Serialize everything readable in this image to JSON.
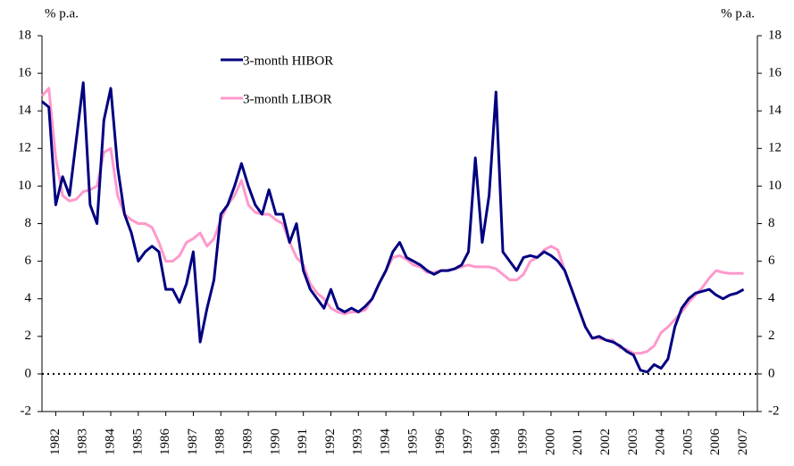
{
  "chart_data": {
    "type": "line",
    "ylabel": "% p.a.",
    "y2label": "% p.a.",
    "xlim": [
      1982,
      2008
    ],
    "xticks": [
      {
        "value": 1982.5,
        "label": "1982"
      },
      {
        "value": 1983.5,
        "label": "1983"
      },
      {
        "value": 1984.5,
        "label": "1984"
      },
      {
        "value": 1985.5,
        "label": "1985"
      },
      {
        "value": 1986.5,
        "label": "1986"
      },
      {
        "value": 1987.5,
        "label": "1987"
      },
      {
        "value": 1988.5,
        "label": "1988"
      },
      {
        "value": 1989.5,
        "label": "1989"
      },
      {
        "value": 1990.5,
        "label": "1990"
      },
      {
        "value": 1991.5,
        "label": "1991"
      },
      {
        "value": 1992.5,
        "label": "1992"
      },
      {
        "value": 1993.5,
        "label": "1993"
      },
      {
        "value": 1994.5,
        "label": "1994"
      },
      {
        "value": 1995.5,
        "label": "1995"
      },
      {
        "value": 1996.5,
        "label": "1996"
      },
      {
        "value": 1997.5,
        "label": "1997"
      },
      {
        "value": 1998.5,
        "label": "1998"
      },
      {
        "value": 1999.5,
        "label": "1999"
      },
      {
        "value": 2000.5,
        "label": "2000"
      },
      {
        "value": 2001.5,
        "label": "2001"
      },
      {
        "value": 2002.5,
        "label": "2002"
      },
      {
        "value": 2003.5,
        "label": "2003"
      },
      {
        "value": 2004.5,
        "label": "2004"
      },
      {
        "value": 2005.5,
        "label": "2005"
      },
      {
        "value": 2006.5,
        "label": "2006"
      },
      {
        "value": 2007.5,
        "label": "2007"
      }
    ],
    "ylim": [
      -2,
      18
    ],
    "yticks": [
      -2,
      0,
      2,
      4,
      6,
      8,
      10,
      12,
      14,
      16,
      18
    ],
    "y2lim": [
      -2,
      18
    ],
    "y2ticks": [
      -2,
      0,
      2,
      4,
      6,
      8,
      10,
      12,
      14,
      16,
      18
    ],
    "reference_line": 0,
    "legend": "upper left",
    "x": [
      1982,
      1982.25,
      1982.5,
      1982.75,
      1983,
      1983.25,
      1983.5,
      1983.75,
      1984,
      1984.25,
      1984.5,
      1984.75,
      1985,
      1985.25,
      1985.5,
      1985.75,
      1986,
      1986.25,
      1986.5,
      1986.75,
      1987,
      1987.25,
      1987.5,
      1987.75,
      1988,
      1988.25,
      1988.5,
      1988.75,
      1989,
      1989.25,
      1989.5,
      1989.75,
      1990,
      1990.25,
      1990.5,
      1990.75,
      1991,
      1991.25,
      1991.5,
      1991.75,
      1992,
      1992.25,
      1992.5,
      1992.75,
      1993,
      1993.25,
      1993.5,
      1993.75,
      1994,
      1994.25,
      1994.5,
      1994.75,
      1995,
      1995.25,
      1995.5,
      1995.75,
      1996,
      1996.25,
      1996.5,
      1996.75,
      1997,
      1997.25,
      1997.5,
      1997.75,
      1998,
      1998.25,
      1998.5,
      1998.75,
      1999,
      1999.25,
      1999.5,
      1999.75,
      2000,
      2000.25,
      2000.5,
      2000.75,
      2001,
      2001.25,
      2001.5,
      2001.75,
      2002,
      2002.25,
      2002.5,
      2002.75,
      2003,
      2003.25,
      2003.5,
      2003.75,
      2004,
      2004.25,
      2004.5,
      2004.75,
      2005,
      2005.25,
      2005.5,
      2005.75,
      2006,
      2006.25,
      2006.5,
      2006.75,
      2007,
      2007.25,
      2007.5
    ],
    "series": [
      {
        "name": "3-month HIBOR",
        "color": "#000080",
        "values": [
          14.5,
          14.2,
          9.0,
          10.5,
          9.5,
          12.5,
          15.5,
          9.0,
          8.0,
          13.5,
          15.2,
          11.0,
          8.5,
          7.5,
          6.0,
          6.5,
          6.8,
          6.5,
          4.5,
          4.5,
          3.8,
          4.8,
          6.5,
          1.7,
          3.5,
          5.0,
          8.5,
          9.0,
          10.0,
          11.2,
          10.0,
          9.0,
          8.5,
          9.8,
          8.5,
          8.5,
          7.0,
          8.0,
          5.5,
          4.5,
          4.0,
          3.5,
          4.5,
          3.5,
          3.3,
          3.5,
          3.3,
          3.6,
          4.0,
          4.8,
          5.5,
          6.5,
          7.0,
          6.2,
          6.0,
          5.8,
          5.5,
          5.3,
          5.5,
          5.5,
          5.6,
          5.8,
          6.5,
          11.5,
          7.0,
          9.5,
          15.0,
          6.5,
          6.0,
          5.5,
          6.2,
          6.3,
          6.2,
          6.5,
          6.3,
          6.0,
          5.5,
          4.5,
          3.5,
          2.5,
          1.9,
          2.0,
          1.8,
          1.7,
          1.5,
          1.2,
          1.0,
          0.2,
          0.1,
          0.5,
          0.3,
          0.8,
          2.5,
          3.5,
          4.0,
          4.3,
          4.4,
          4.5,
          4.2,
          4.0,
          4.2,
          4.3,
          4.5
        ]
      },
      {
        "name": "3-month LIBOR",
        "color": "#ff99cc",
        "values": [
          14.8,
          15.2,
          11.5,
          9.5,
          9.2,
          9.3,
          9.7,
          9.8,
          10.0,
          11.8,
          12.0,
          9.5,
          8.5,
          8.2,
          8.0,
          8.0,
          7.8,
          7.0,
          6.0,
          6.0,
          6.3,
          7.0,
          7.2,
          7.5,
          6.8,
          7.2,
          8.2,
          9.0,
          9.5,
          10.3,
          9.0,
          8.6,
          8.5,
          8.5,
          8.2,
          8.0,
          7.0,
          6.2,
          5.8,
          4.8,
          4.3,
          4.0,
          3.5,
          3.3,
          3.2,
          3.3,
          3.3,
          3.4,
          4.0,
          4.8,
          5.5,
          6.2,
          6.3,
          6.1,
          5.8,
          5.7,
          5.4,
          5.4,
          5.5,
          5.5,
          5.6,
          5.7,
          5.8,
          5.7,
          5.7,
          5.7,
          5.6,
          5.3,
          5.0,
          5.0,
          5.3,
          6.0,
          6.2,
          6.6,
          6.8,
          6.6,
          5.5,
          4.5,
          3.5,
          2.5,
          1.9,
          1.9,
          1.8,
          1.8,
          1.4,
          1.3,
          1.1,
          1.1,
          1.2,
          1.5,
          2.2,
          2.5,
          2.9,
          3.3,
          3.8,
          4.2,
          4.6,
          5.1,
          5.5,
          5.4,
          5.35,
          5.35,
          5.35
        ]
      }
    ]
  }
}
